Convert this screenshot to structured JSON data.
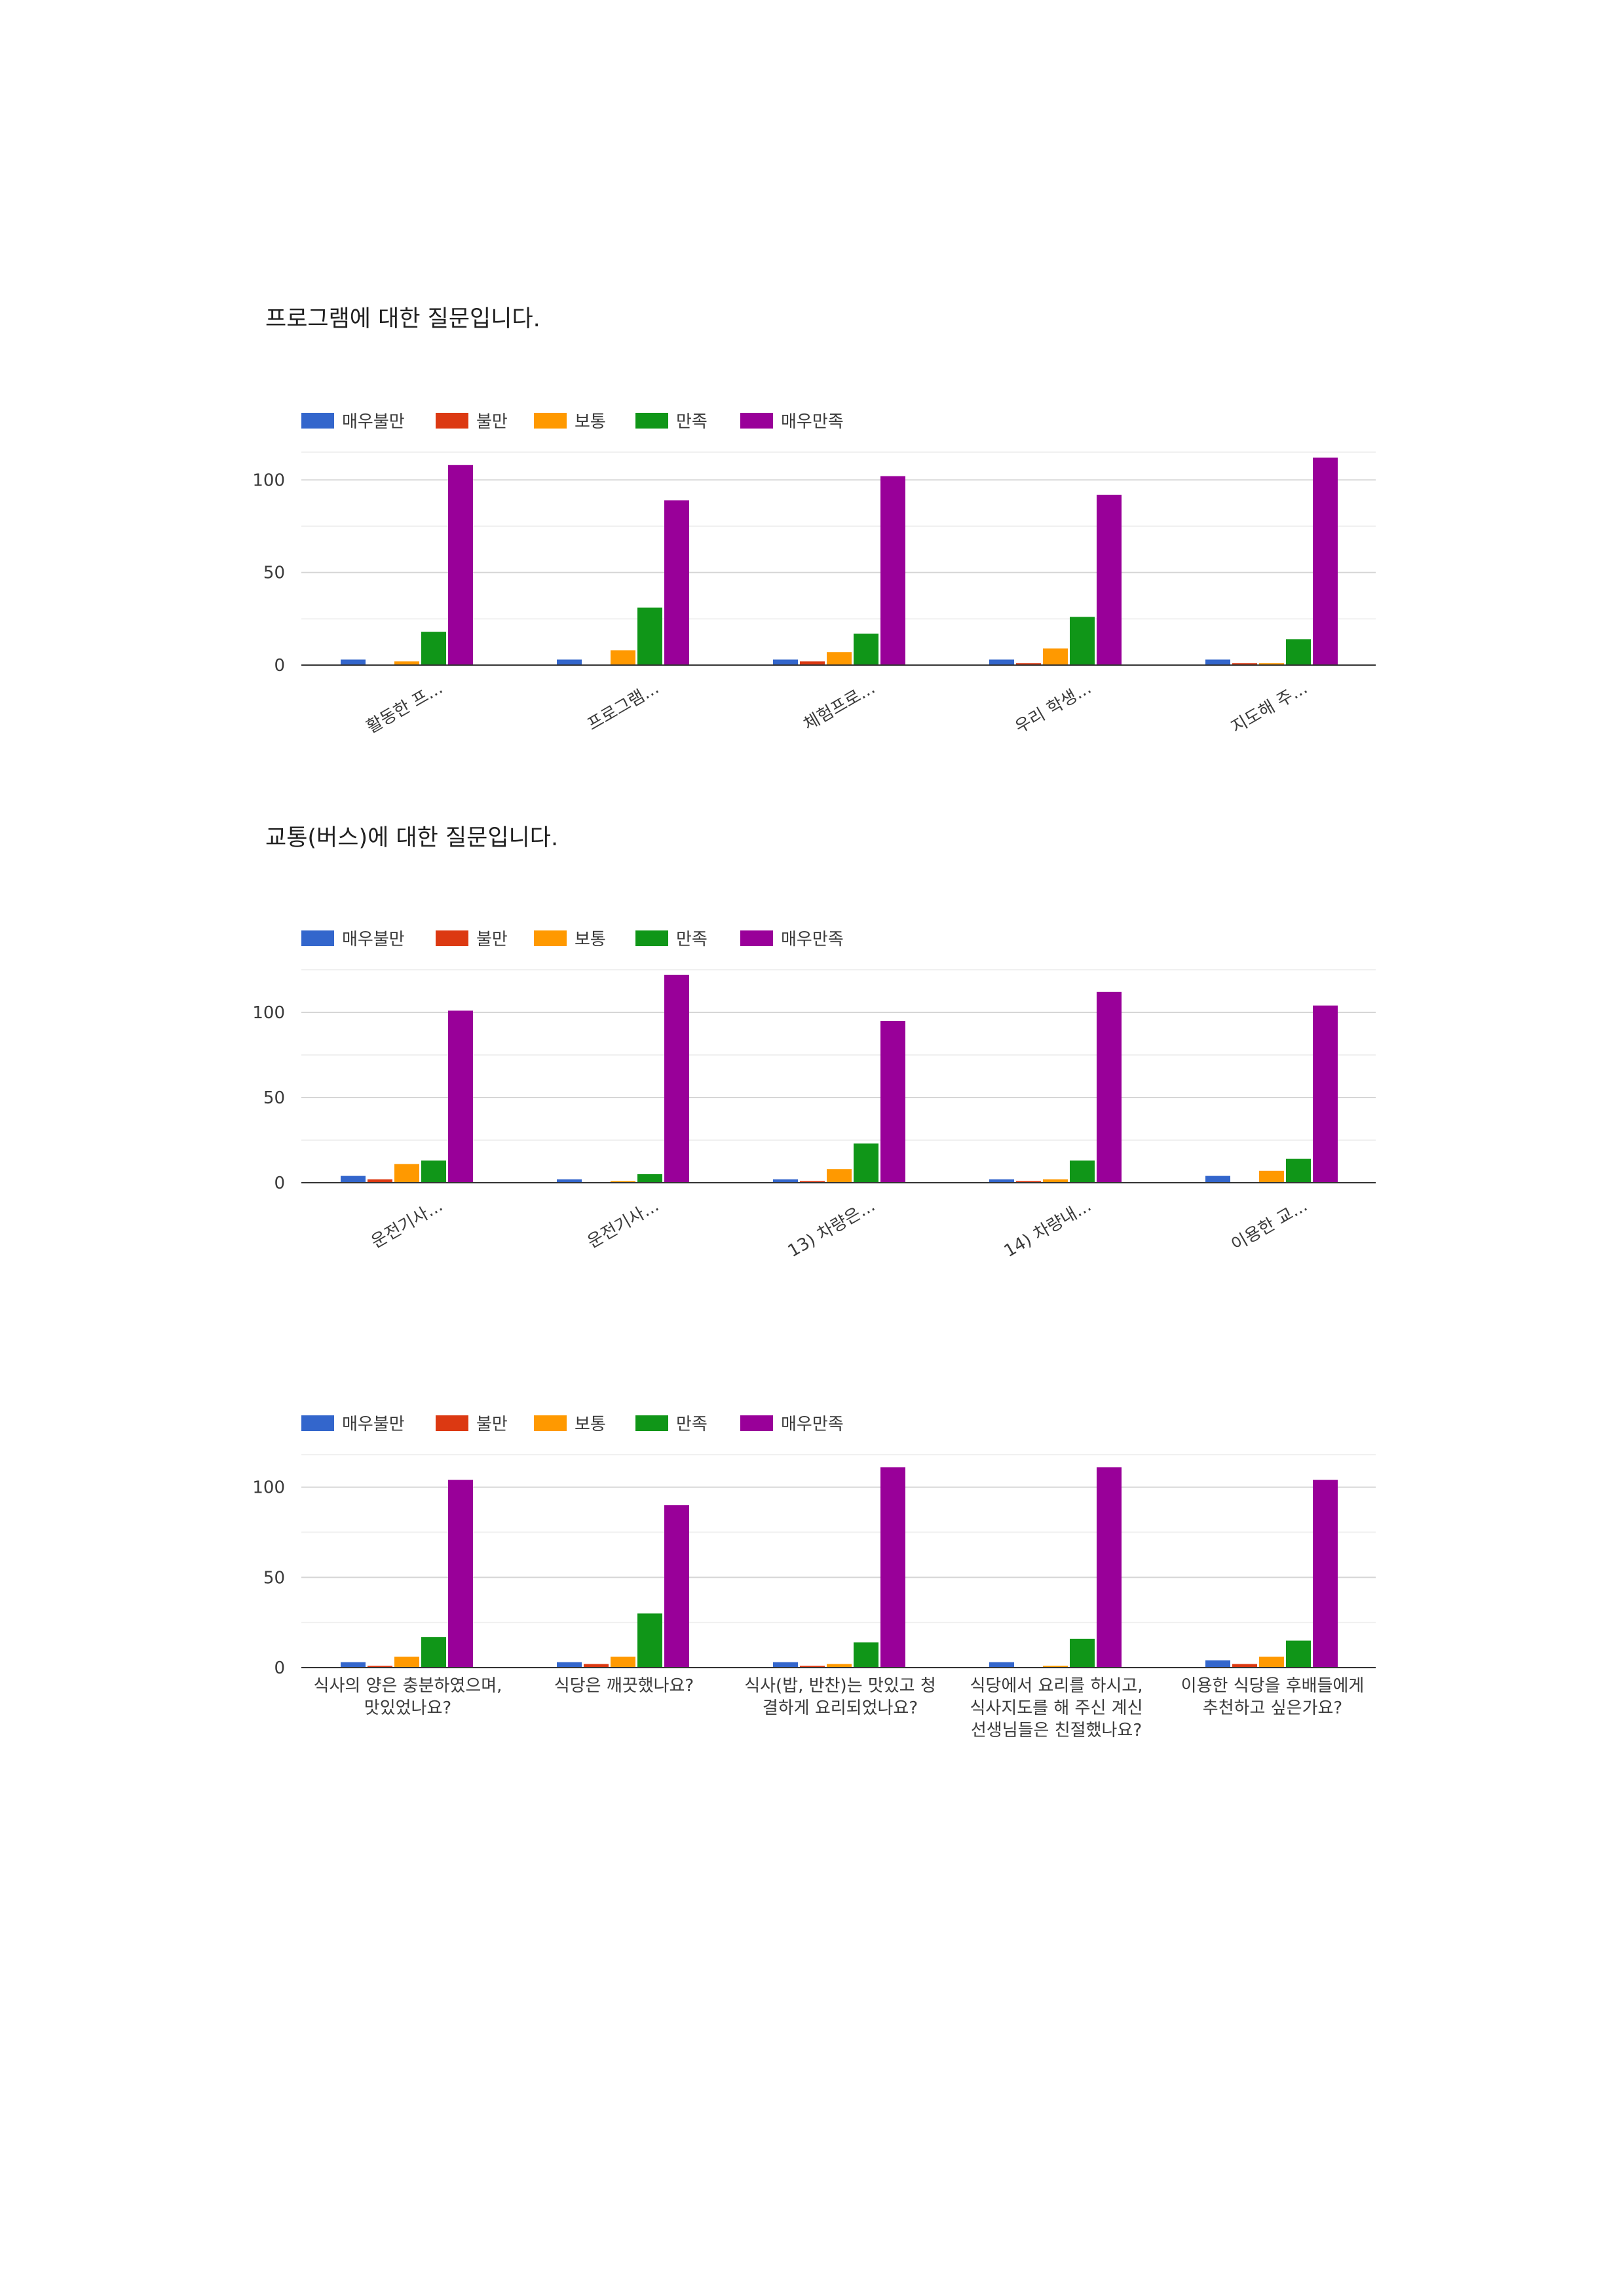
{
  "sections": [
    {
      "title": "프로그램에 대한 질문입니다."
    },
    {
      "title": "교통(버스)에 대한 질문입니다."
    },
    {
      "title": ""
    }
  ],
  "colors": {
    "매우불만": "#3366cc",
    "불만": "#dc3912",
    "보통": "#ff9900",
    "만족": "#109618",
    "매우만족": "#990099"
  },
  "chart_data": [
    {
      "type": "bar",
      "title": "",
      "legend_position": "top",
      "ylim": [
        0,
        115
      ],
      "yticks": [
        0,
        50,
        100
      ],
      "label_style": "rotated",
      "categories": [
        [
          "활동한 프..."
        ],
        [
          "프로그램..."
        ],
        [
          "체험프로..."
        ],
        [
          "우리 학생..."
        ],
        [
          "지도해 주..."
        ]
      ],
      "series": [
        {
          "name": "매우불만",
          "values": [
            3,
            3,
            3,
            3,
            3
          ]
        },
        {
          "name": "불만",
          "values": [
            0,
            0,
            2,
            1,
            1
          ]
        },
        {
          "name": "보통",
          "values": [
            2,
            8,
            7,
            9,
            1
          ]
        },
        {
          "name": "만족",
          "values": [
            18,
            31,
            17,
            26,
            14
          ]
        },
        {
          "name": "매우만족",
          "values": [
            108,
            89,
            102,
            92,
            112
          ]
        }
      ]
    },
    {
      "type": "bar",
      "title": "",
      "legend_position": "top",
      "ylim": [
        0,
        125
      ],
      "yticks": [
        0,
        50,
        100
      ],
      "label_style": "rotated",
      "categories": [
        [
          "운전기사..."
        ],
        [
          "운전기사..."
        ],
        [
          "13) 차량은..."
        ],
        [
          "14) 차량내..."
        ],
        [
          "이용한 교..."
        ]
      ],
      "series": [
        {
          "name": "매우불만",
          "values": [
            4,
            2,
            2,
            2,
            4
          ]
        },
        {
          "name": "불만",
          "values": [
            2,
            0,
            1,
            1,
            0
          ]
        },
        {
          "name": "보통",
          "values": [
            11,
            1,
            8,
            2,
            7
          ]
        },
        {
          "name": "만족",
          "values": [
            13,
            5,
            23,
            13,
            14
          ]
        },
        {
          "name": "매우만족",
          "values": [
            101,
            122,
            95,
            112,
            104
          ]
        }
      ]
    },
    {
      "type": "bar",
      "title": "",
      "legend_position": "top",
      "ylim": [
        0,
        118
      ],
      "yticks": [
        0,
        50,
        100
      ],
      "label_style": "wrapped",
      "categories": [
        [
          "식사의 양은 충분하였으며,",
          "맛있었나요?"
        ],
        [
          "식당은 깨끗했나요?"
        ],
        [
          "식사(밥, 반찬)는 맛있고 청",
          "결하게 요리되었나요?"
        ],
        [
          "식당에서 요리를 하시고,",
          "식사지도를 해 주신 계신",
          "선생님들은 친절했나요?"
        ],
        [
          "이용한 식당을 후배들에게",
          "추천하고 싶은가요?"
        ]
      ],
      "series": [
        {
          "name": "매우불만",
          "values": [
            3,
            3,
            3,
            3,
            4
          ]
        },
        {
          "name": "불만",
          "values": [
            1,
            2,
            1,
            0,
            2
          ]
        },
        {
          "name": "보통",
          "values": [
            6,
            6,
            2,
            1,
            6
          ]
        },
        {
          "name": "만족",
          "values": [
            17,
            30,
            14,
            16,
            15
          ]
        },
        {
          "name": "매우만족",
          "values": [
            104,
            90,
            111,
            111,
            104
          ]
        }
      ]
    }
  ]
}
